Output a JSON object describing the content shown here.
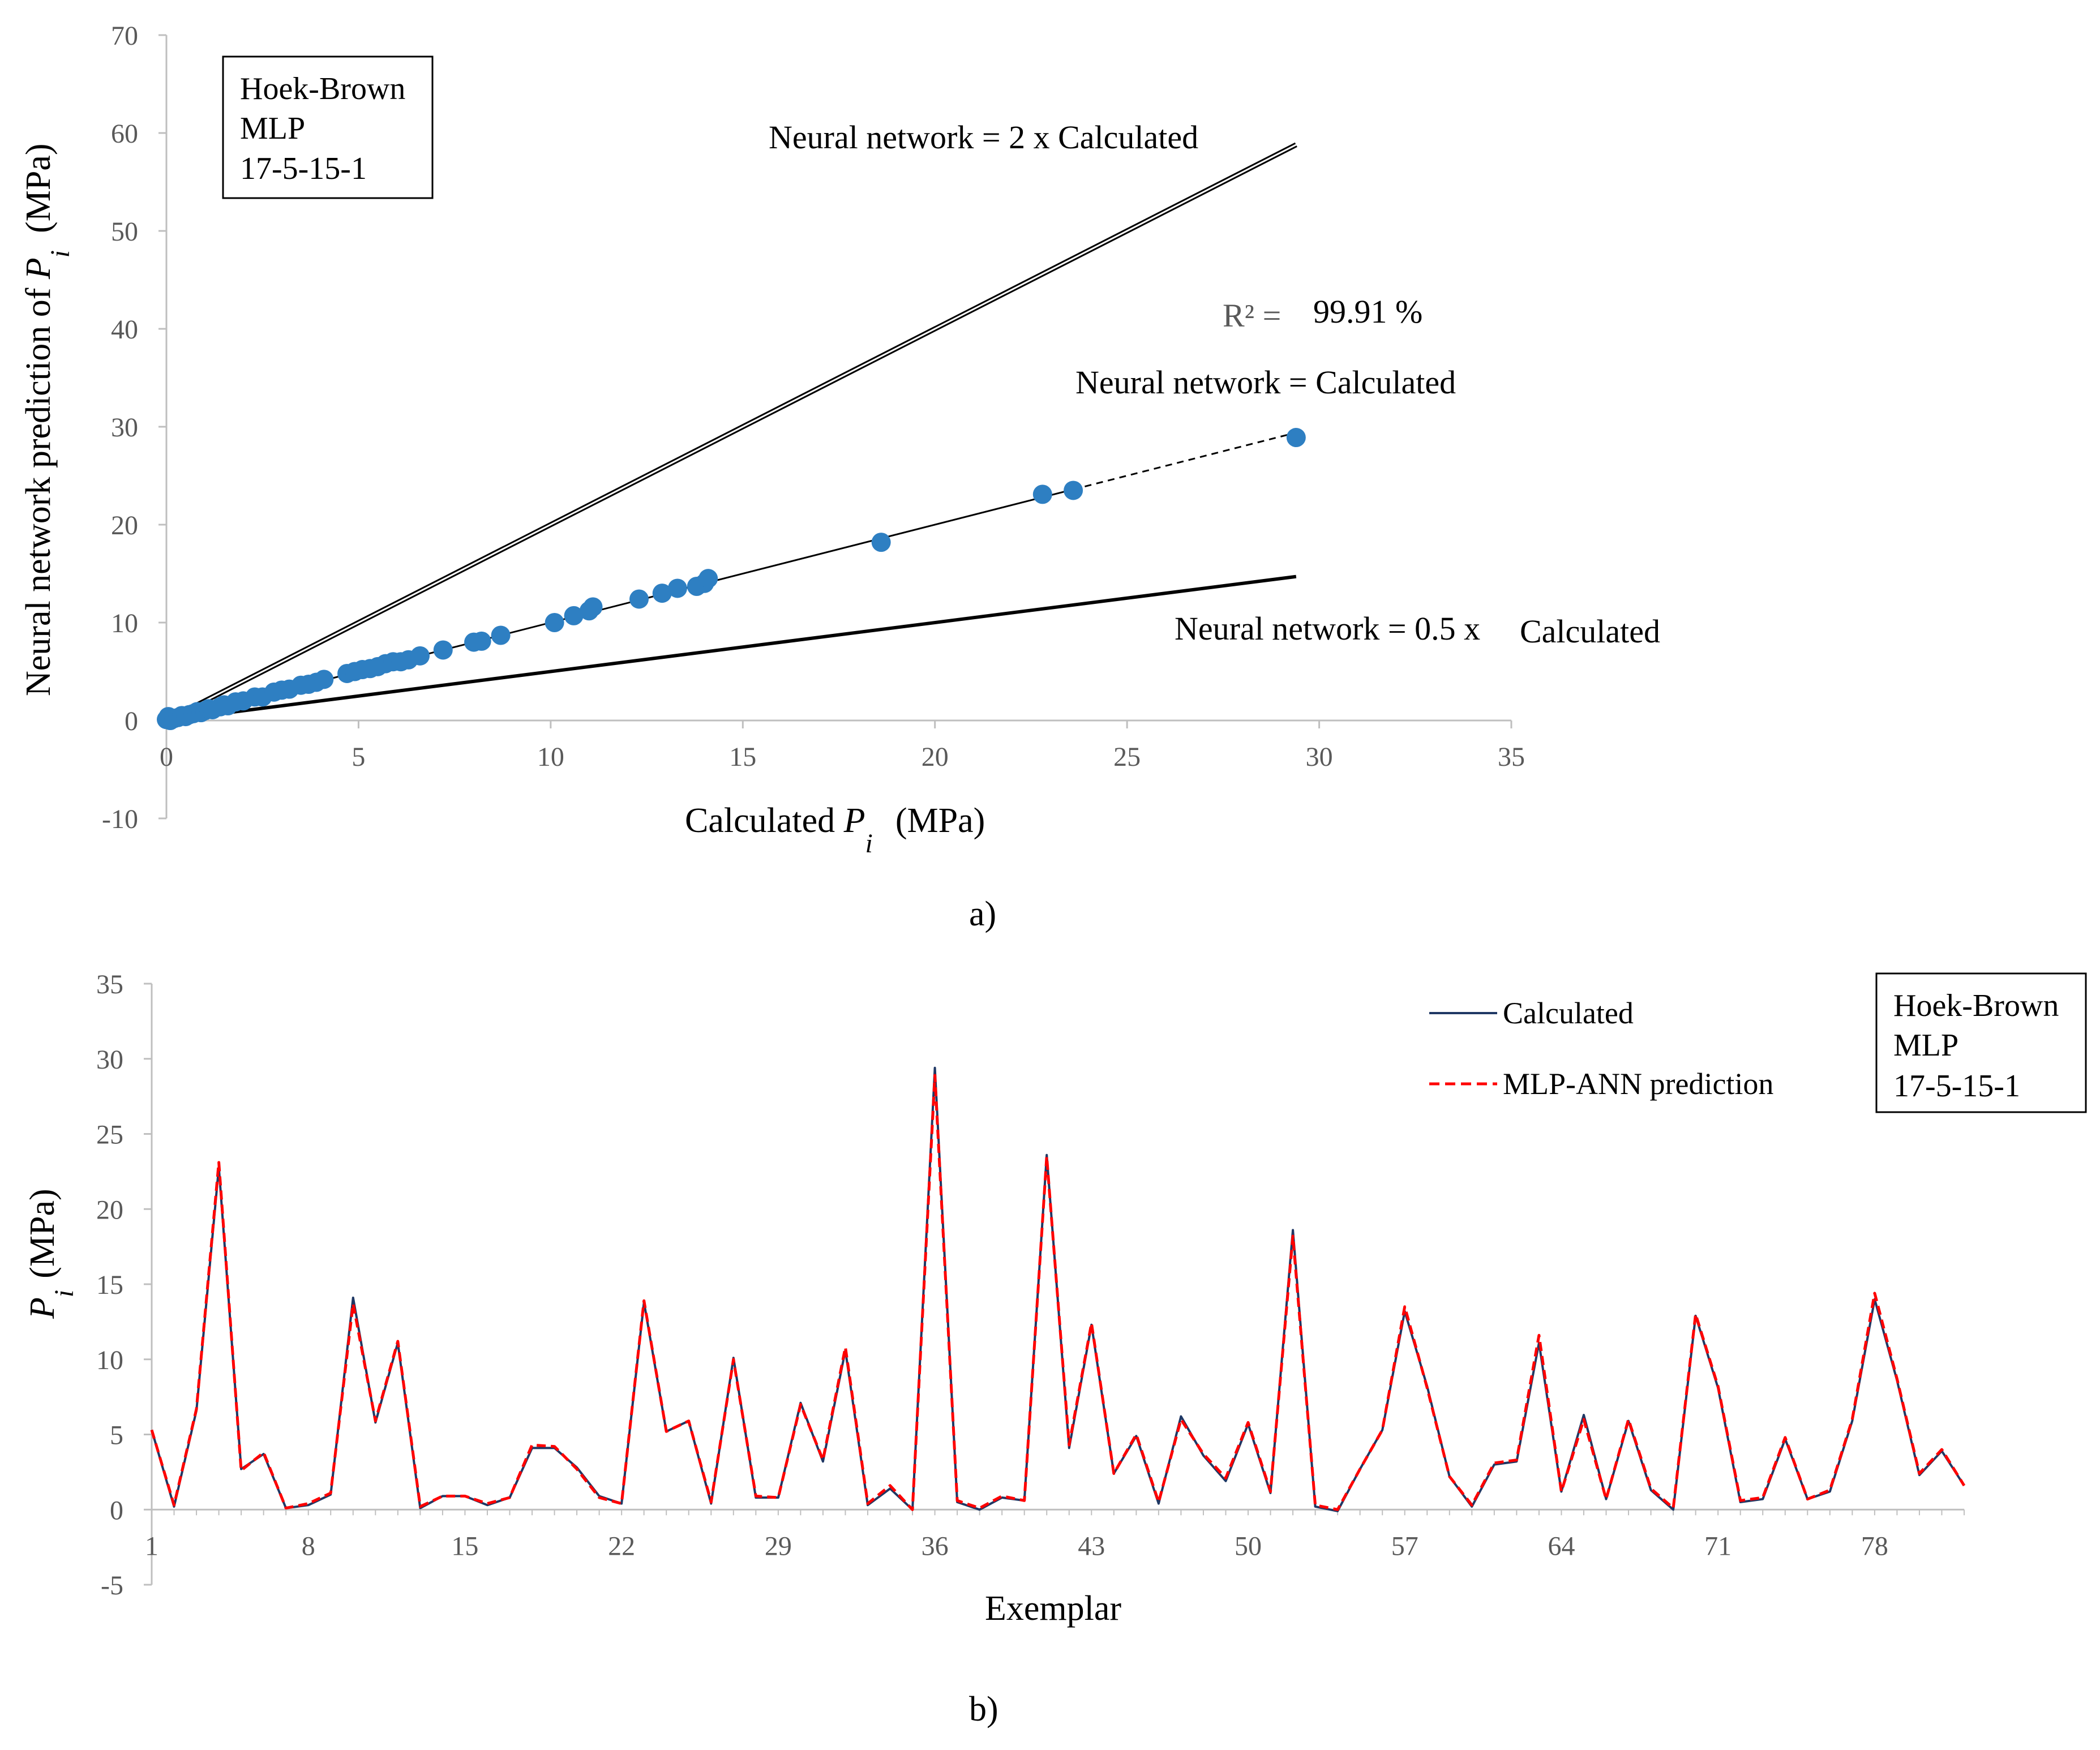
{
  "chart_data": [
    {
      "type": "scatter",
      "panel_caption": "a)",
      "xlabel_prefix": "Calculated ",
      "xlabel_var": "P",
      "xlabel_sub": "i",
      "xlabel_unit": "(MPa)",
      "ylabel_prefix": "Neural network prediction of ",
      "ylabel_var": "P",
      "ylabel_sub": "i",
      "ylabel_unit": "(MPa)",
      "xlim": [
        0,
        35
      ],
      "ylim": [
        -10,
        70
      ],
      "xticks": [
        0,
        5,
        10,
        15,
        20,
        25,
        30,
        35
      ],
      "yticks": [
        -10,
        0,
        10,
        20,
        30,
        40,
        50,
        60,
        70
      ],
      "box_lines": [
        "Hoek-Brown",
        "MLP",
        "17-5-15-1"
      ],
      "r2_symbol": "R² =",
      "r2_value": "99.91 %",
      "line_labels": {
        "upper": "Neural network = 2 x Calculated",
        "middle": "Neural network = Calculated",
        "lower_a": "Neural network = 0.5 x",
        "lower_b": "Calculated"
      },
      "reference_lines": [
        {
          "slope": 2,
          "x_end": 29.4
        },
        {
          "slope": 1,
          "x_end": 29.4
        },
        {
          "slope": 0.5,
          "x_end": 29.4
        }
      ],
      "point_color": "#2e7fc2",
      "points": [
        [
          0.0,
          0.1
        ],
        [
          0.05,
          0.4
        ],
        [
          0.1,
          0.0
        ],
        [
          0.2,
          0.2
        ],
        [
          0.3,
          0.3
        ],
        [
          0.4,
          0.5
        ],
        [
          0.5,
          0.4
        ],
        [
          0.6,
          0.6
        ],
        [
          0.7,
          0.7
        ],
        [
          0.8,
          0.9
        ],
        [
          0.9,
          0.8
        ],
        [
          1.0,
          1.0
        ],
        [
          1.1,
          1.2
        ],
        [
          1.2,
          1.1
        ],
        [
          1.4,
          1.4
        ],
        [
          1.5,
          1.6
        ],
        [
          1.6,
          1.5
        ],
        [
          1.8,
          1.9
        ],
        [
          2.0,
          2.0
        ],
        [
          2.3,
          2.4
        ],
        [
          2.5,
          2.4
        ],
        [
          2.8,
          2.9
        ],
        [
          3.0,
          3.1
        ],
        [
          3.2,
          3.2
        ],
        [
          3.5,
          3.6
        ],
        [
          3.7,
          3.7
        ],
        [
          3.9,
          3.9
        ],
        [
          4.1,
          4.2
        ],
        [
          4.7,
          4.8
        ],
        [
          4.9,
          5.0
        ],
        [
          5.1,
          5.2
        ],
        [
          5.3,
          5.3
        ],
        [
          5.5,
          5.5
        ],
        [
          5.7,
          5.8
        ],
        [
          5.9,
          6.0
        ],
        [
          6.1,
          6.0
        ],
        [
          6.3,
          6.2
        ],
        [
          6.6,
          6.6
        ],
        [
          7.2,
          7.2
        ],
        [
          8.0,
          8.0
        ],
        [
          8.2,
          8.1
        ],
        [
          8.7,
          8.7
        ],
        [
          10.1,
          10.0
        ],
        [
          10.6,
          10.7
        ],
        [
          11.0,
          11.2
        ],
        [
          11.1,
          11.6
        ],
        [
          12.3,
          12.4
        ],
        [
          12.9,
          13.0
        ],
        [
          13.3,
          13.5
        ],
        [
          13.8,
          13.7
        ],
        [
          14.0,
          14.0
        ],
        [
          14.1,
          14.5
        ],
        [
          18.6,
          18.2
        ],
        [
          22.8,
          23.1
        ],
        [
          23.6,
          23.5
        ],
        [
          29.4,
          28.9
        ]
      ]
    },
    {
      "type": "line",
      "panel_caption": "b)",
      "xlabel": "Exemplar",
      "ylabel_var": "P",
      "ylabel_sub": "i",
      "ylabel_unit": "(MPa)",
      "xlim": [
        1,
        82
      ],
      "ylim": [
        -5,
        35
      ],
      "xticks": [
        1,
        8,
        15,
        22,
        29,
        36,
        43,
        50,
        57,
        64,
        71,
        78
      ],
      "yticks": [
        -5,
        0,
        5,
        10,
        15,
        20,
        25,
        30,
        35
      ],
      "box_lines": [
        "Hoek-Brown",
        "MLP",
        "17-5-15-1"
      ],
      "series": [
        {
          "name": "Calculated",
          "color": "#1f3864",
          "dashed": false,
          "values": [
            5.3,
            0.2,
            6.6,
            22.8,
            2.7,
            3.7,
            0.1,
            0.3,
            1.0,
            14.1,
            5.8,
            11.1,
            0.1,
            0.9,
            0.9,
            0.3,
            0.8,
            4.1,
            4.1,
            2.8,
            0.9,
            0.4,
            13.8,
            5.2,
            5.9,
            0.4,
            10.1,
            0.8,
            0.8,
            7.1,
            3.2,
            10.6,
            0.3,
            1.4,
            0.0,
            29.4,
            0.5,
            0.0,
            0.8,
            0.6,
            23.6,
            4.1,
            12.3,
            2.4,
            4.9,
            0.4,
            6.2,
            3.6,
            1.9,
            5.7,
            1.1,
            18.6,
            0.2,
            -0.1,
            2.7,
            5.3,
            13.2,
            8.2,
            2.2,
            0.2,
            3.0,
            3.2,
            11.1,
            1.2,
            6.3,
            0.7,
            5.9,
            1.3,
            0.0,
            12.9,
            8.1,
            0.5,
            0.7,
            4.7,
            0.7,
            1.2,
            5.9,
            14.0,
            8.6,
            2.3,
            3.9,
            1.6
          ]
        },
        {
          "name": "MLP-ANN prediction",
          "color": "#ff0000",
          "dashed": true,
          "values": [
            5.3,
            0.3,
            6.7,
            23.1,
            2.6,
            3.8,
            0.1,
            0.4,
            1.1,
            13.7,
            5.9,
            11.2,
            0.2,
            0.9,
            0.9,
            0.4,
            0.8,
            4.3,
            4.2,
            2.7,
            0.8,
            0.4,
            13.9,
            5.2,
            5.9,
            0.5,
            10.0,
            0.9,
            0.8,
            7.0,
            3.3,
            10.8,
            0.4,
            1.6,
            0.0,
            28.9,
            0.6,
            0.1,
            0.9,
            0.6,
            23.5,
            4.3,
            12.4,
            2.4,
            5.0,
            0.5,
            6.0,
            3.7,
            2.1,
            5.8,
            1.2,
            18.2,
            0.3,
            0.0,
            2.7,
            5.3,
            13.5,
            8.1,
            2.2,
            0.3,
            3.1,
            3.3,
            11.6,
            1.2,
            6.0,
            0.7,
            6.0,
            1.4,
            0.1,
            13.0,
            8.2,
            0.6,
            0.8,
            4.8,
            0.7,
            1.3,
            6.0,
            14.4,
            8.7,
            2.4,
            4.0,
            1.6
          ]
        }
      ]
    }
  ]
}
